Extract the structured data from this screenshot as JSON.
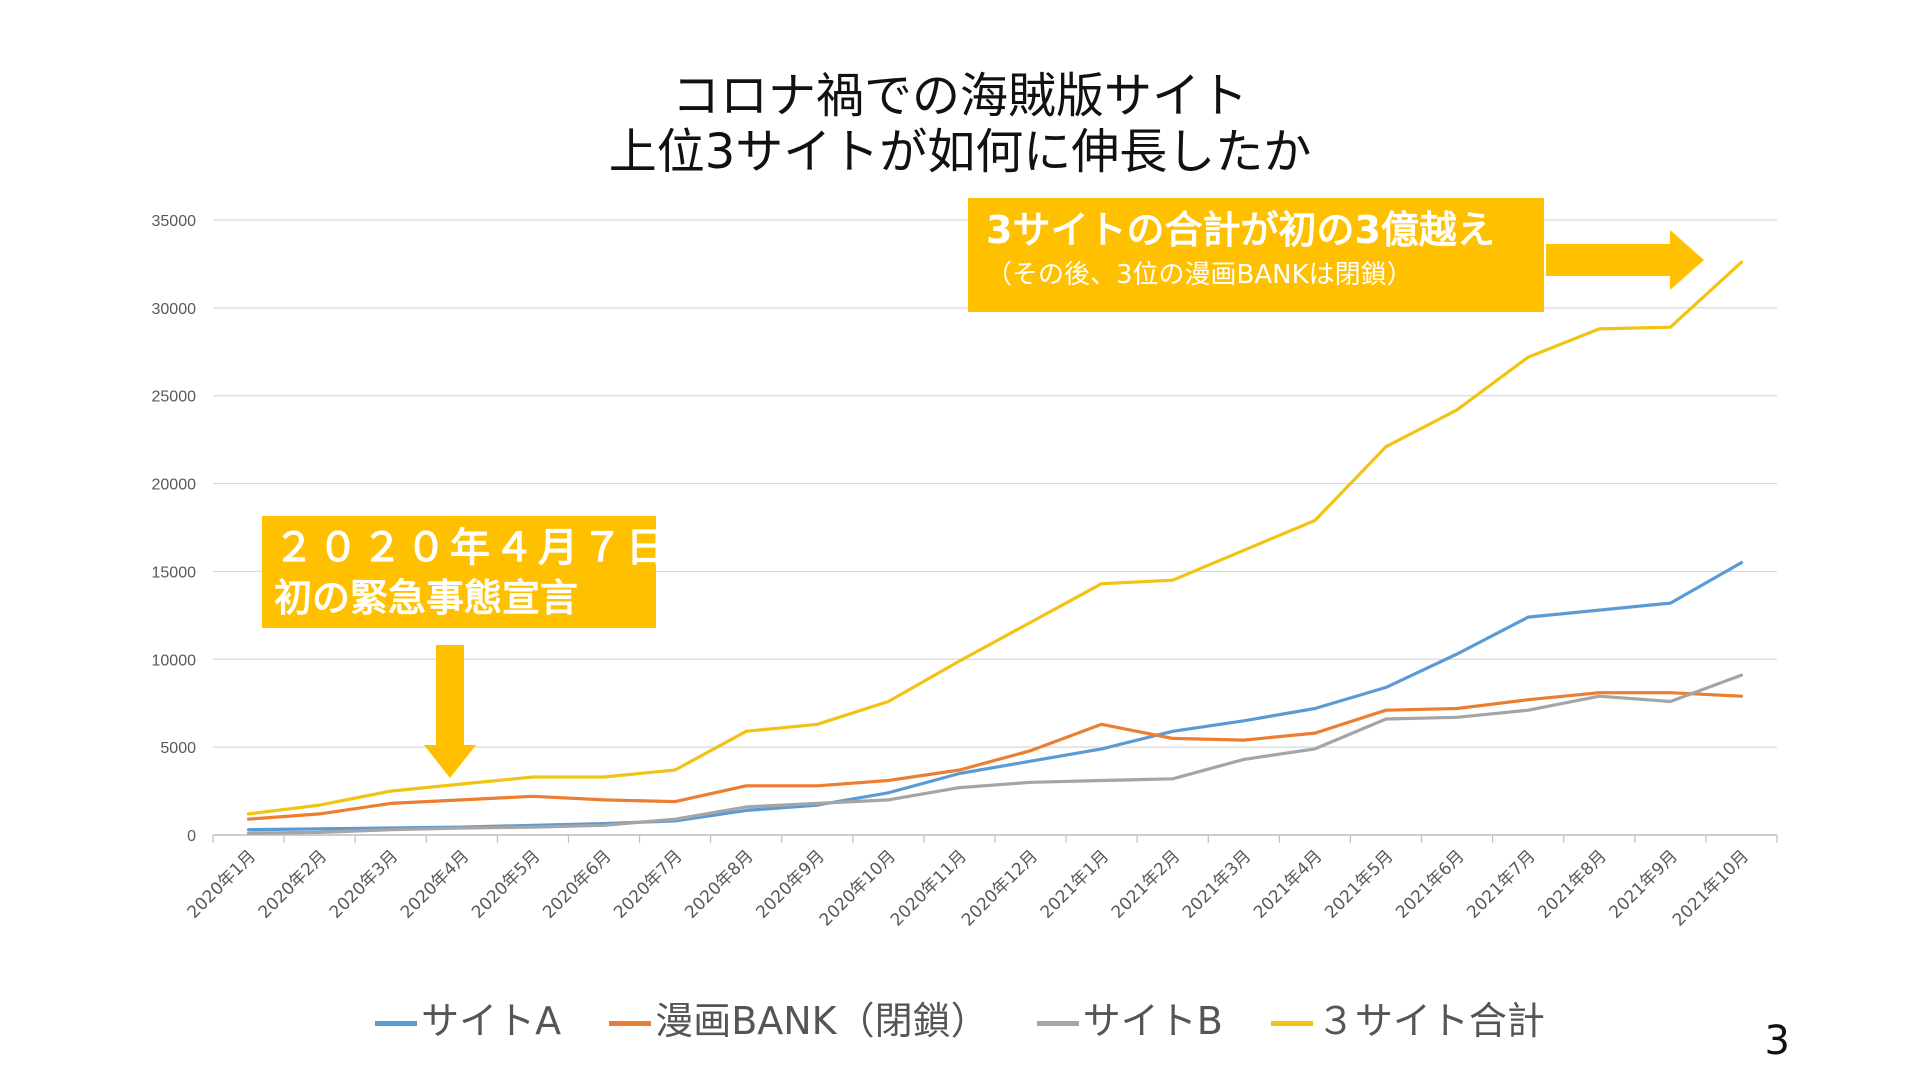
{
  "title_lines": [
    "コロナ禍での海賊版サイト",
    "上位3サイトが如何に伸長したか"
  ],
  "callouts": {
    "top": {
      "main": "3サイトの合計が初の3億越え",
      "sub": "（その後、3位の漫画BANKは閉鎖）"
    },
    "left": {
      "line1": "２０２０年４月７日",
      "line2": "初の緊急事態宣言"
    }
  },
  "page_number": "3",
  "colors": {
    "site_a": "#5B9BD5",
    "manga_bank": "#ED7D31",
    "site_b": "#A5A5A5",
    "total": "#F2C314",
    "callout": "#FFC000",
    "grid": "#D9D9D9",
    "axis_text": "#595959"
  },
  "chart_data": {
    "type": "line",
    "title": "コロナ禍での海賊版サイト 上位3サイトが如何に伸長したか",
    "xlabel": "",
    "ylabel": "",
    "ylim": [
      0,
      35000
    ],
    "yticks": [
      0,
      5000,
      10000,
      15000,
      20000,
      25000,
      30000,
      35000
    ],
    "grid": true,
    "legend_position": "bottom",
    "categories": [
      "2020年1月",
      "2020年2月",
      "2020年3月",
      "2020年4月",
      "2020年5月",
      "2020年6月",
      "2020年7月",
      "2020年8月",
      "2020年9月",
      "2020年10月",
      "2020年11月",
      "2020年12月",
      "2021年1月",
      "2021年2月",
      "2021年3月",
      "2021年4月",
      "2021年5月",
      "2021年6月",
      "2021年7月",
      "2021年8月",
      "2021年9月",
      "2021年10月"
    ],
    "series": [
      {
        "name": "サイトA",
        "color": "#5B9BD5",
        "values": [
          300,
          350,
          400,
          450,
          550,
          650,
          800,
          1400,
          1700,
          2400,
          3500,
          4200,
          4900,
          5900,
          6500,
          7200,
          8400,
          10300,
          12400,
          12800,
          13200,
          15500
        ]
      },
      {
        "name": "漫画BANK（閉鎖）",
        "color": "#ED7D31",
        "values": [
          900,
          1200,
          1800,
          2000,
          2200,
          2000,
          1900,
          2800,
          2800,
          3100,
          3700,
          4800,
          6300,
          5500,
          5400,
          5800,
          7100,
          7200,
          7700,
          8100,
          8100,
          7900
        ]
      },
      {
        "name": "サイトB",
        "color": "#A5A5A5",
        "values": [
          100,
          150,
          300,
          400,
          450,
          550,
          900,
          1600,
          1800,
          2000,
          2700,
          3000,
          3100,
          3200,
          4300,
          4900,
          6600,
          6700,
          7100,
          7900,
          7600,
          9100
        ]
      },
      {
        "name": "３サイト合計",
        "color": "#F2C314",
        "values": [
          1200,
          1700,
          2500,
          2900,
          3300,
          3300,
          3700,
          5900,
          6300,
          7600,
          9900,
          12100,
          14300,
          14500,
          16200,
          17900,
          22100,
          24200,
          27200,
          28800,
          28900,
          32600
        ]
      }
    ]
  }
}
